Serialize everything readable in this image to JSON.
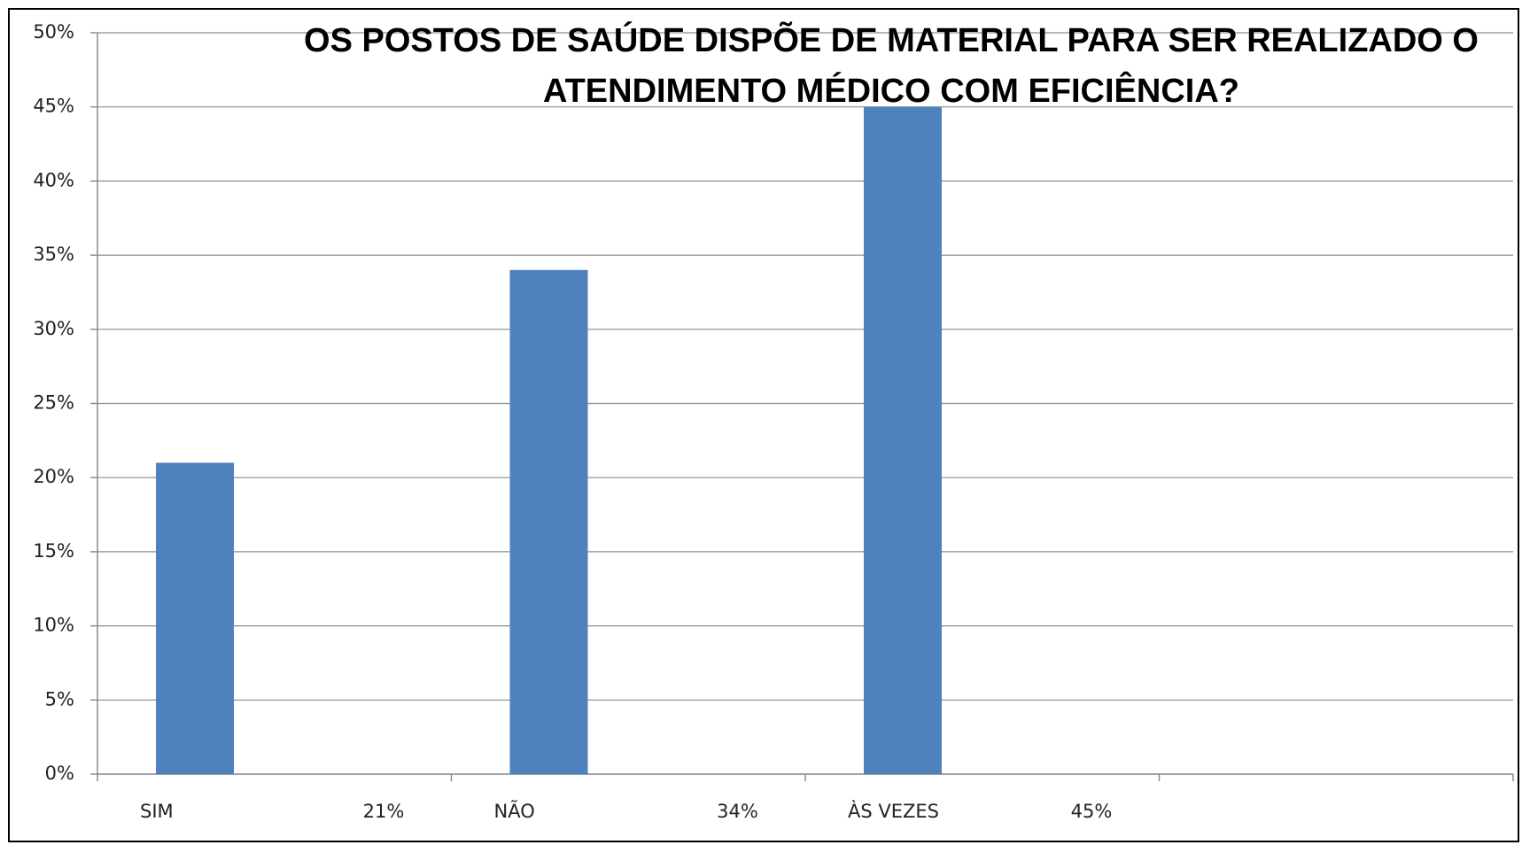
{
  "chart_data": {
    "type": "bar",
    "title": [
      "OS POSTOS DE SAÚDE DISPÕE DE MATERIAL PARA SER REALIZADO O",
      "ATENDIMENTO MÉDICO COM EFICIÊNCIA?"
    ],
    "categories": [
      "SIM",
      "NÃO",
      "ÀS VEZES",
      null
    ],
    "values": [
      21,
      34,
      45,
      null
    ],
    "value_labels": [
      "21%",
      "34%",
      "45%",
      null
    ],
    "color": "#4f81bd",
    "ylim": [
      0,
      50
    ],
    "yticks": [
      {
        "value": 0,
        "label": "0%"
      },
      {
        "value": 5,
        "label": "5%"
      },
      {
        "value": 10,
        "label": "10%"
      },
      {
        "value": 15,
        "label": "15%"
      },
      {
        "value": 20,
        "label": "20%"
      },
      {
        "value": 25,
        "label": "25%"
      },
      {
        "value": 30,
        "label": "30%"
      },
      {
        "value": 35,
        "label": "35%"
      },
      {
        "value": 40,
        "label": "40%"
      },
      {
        "value": 45,
        "label": "45%"
      },
      {
        "value": 50,
        "label": "50%"
      }
    ],
    "grid": true
  }
}
